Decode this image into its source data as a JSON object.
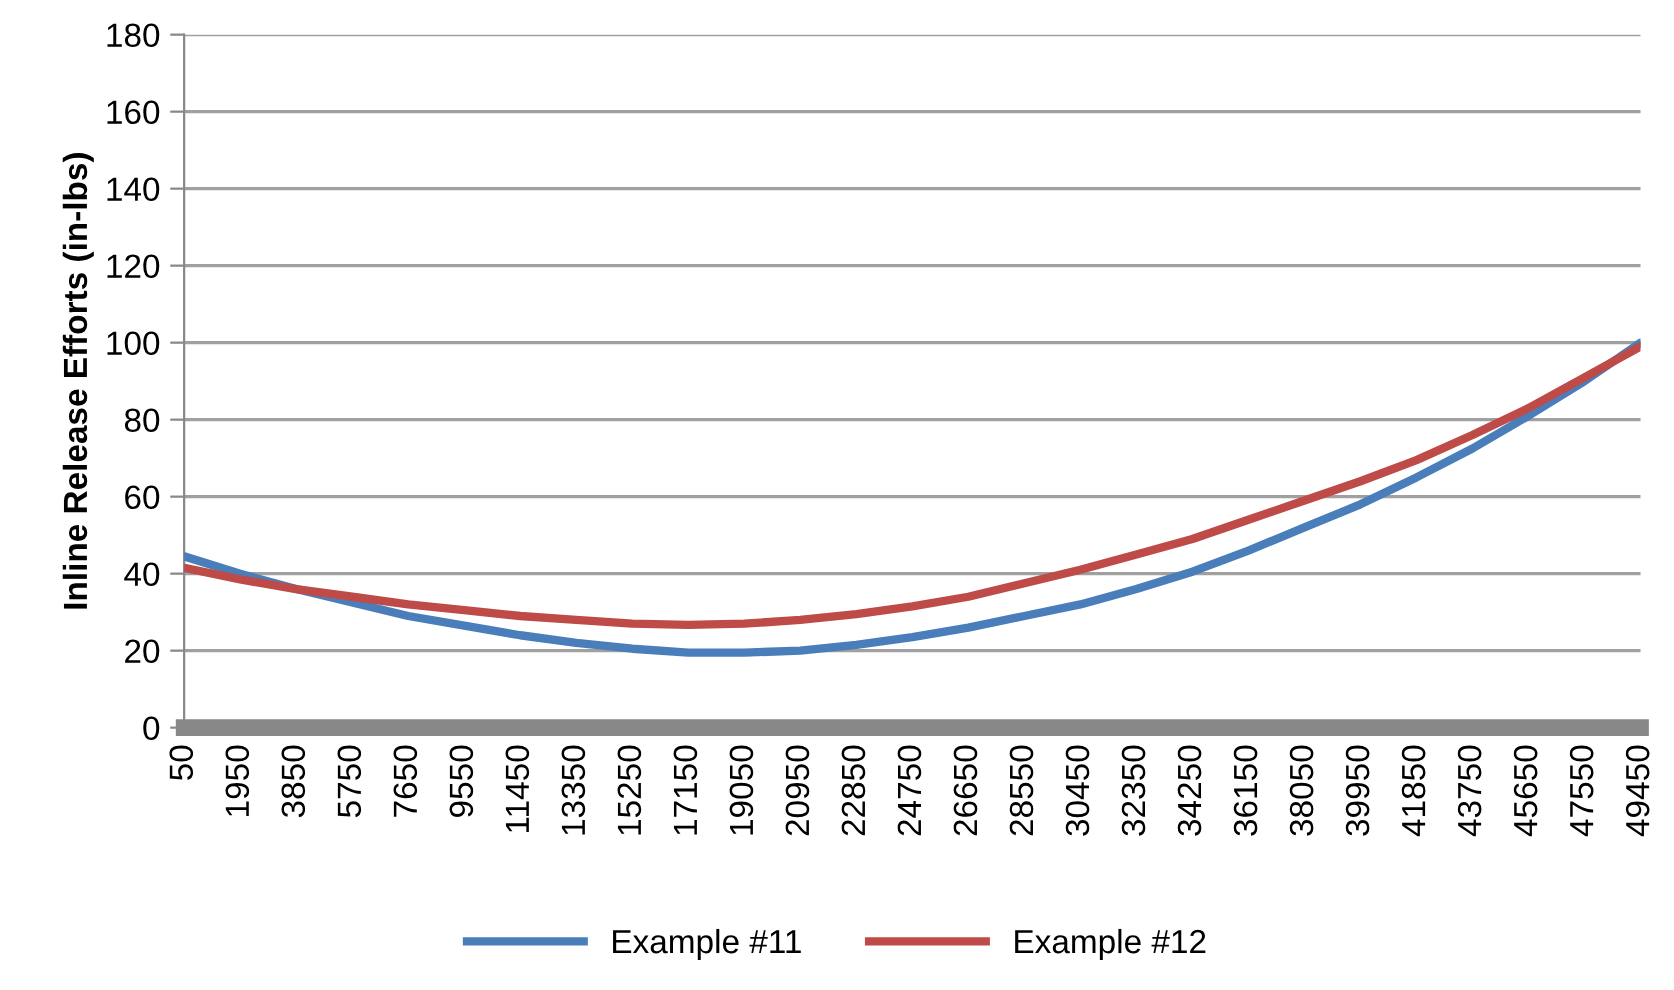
{
  "chart_data": {
    "type": "line",
    "ylabel": "Inline Release Efforts (in-lbs)",
    "x": [
      50,
      1950,
      3850,
      5750,
      7650,
      9550,
      11450,
      13350,
      15250,
      17150,
      19050,
      20950,
      22850,
      24750,
      26650,
      28550,
      30450,
      32350,
      34250,
      36150,
      38050,
      39950,
      41850,
      43750,
      45650,
      47550,
      49450
    ],
    "series": [
      {
        "name": "Example #11",
        "color": "#4a7ebb",
        "values": [
          44.5,
          40,
          36,
          32.5,
          29,
          26.5,
          24,
          22,
          20.5,
          19.5,
          19.5,
          20,
          21.5,
          23.5,
          26,
          29,
          32,
          36,
          40.5,
          46,
          52,
          58,
          65,
          72.5,
          81,
          90,
          100
        ]
      },
      {
        "name": "Example #12",
        "color": "#be4b48",
        "values": [
          41.5,
          38.5,
          36,
          34,
          32,
          30.5,
          29,
          28,
          27,
          26.7,
          27,
          28,
          29.5,
          31.5,
          34,
          37.5,
          41,
          45,
          49,
          54,
          59,
          64,
          69.5,
          76,
          83,
          91,
          99
        ]
      }
    ],
    "xlim": [
      50,
      49450
    ],
    "xticks": [
      50,
      1950,
      3850,
      5750,
      7650,
      9550,
      11450,
      13350,
      15250,
      17150,
      19050,
      20950,
      22850,
      24750,
      26650,
      28550,
      30450,
      32350,
      34250,
      36150,
      38050,
      39950,
      41850,
      43750,
      45650,
      47550,
      49450
    ],
    "ylim": [
      0,
      180
    ],
    "yticks": [
      0,
      20,
      40,
      60,
      80,
      100,
      120,
      140,
      160,
      180
    ],
    "grid": "y",
    "legend": "bottom",
    "marker": "none",
    "line_style": "solid"
  }
}
